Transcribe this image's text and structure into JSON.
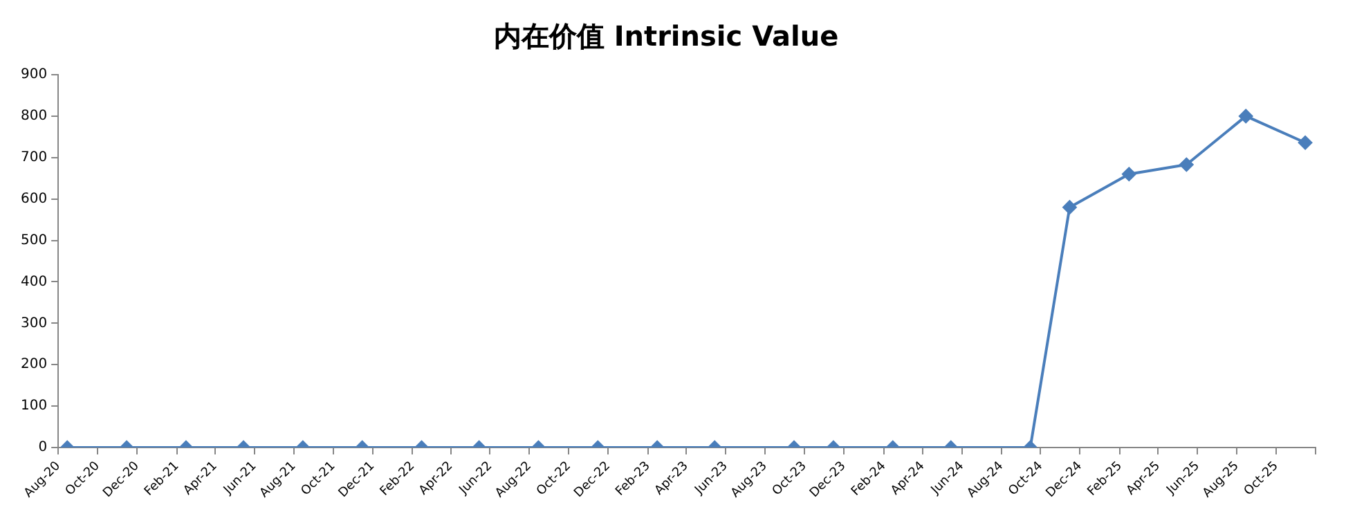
{
  "chart_data": {
    "type": "line",
    "title": "内在价值 Intrinsic Value",
    "x": [
      "2020-08-15",
      "2020-11-15",
      "2021-02-15",
      "2021-05-15",
      "2021-08-15",
      "2021-11-15",
      "2022-02-15",
      "2022-05-15",
      "2022-08-15",
      "2022-11-15",
      "2023-02-15",
      "2023-05-15",
      "2023-09-15",
      "2023-11-15",
      "2024-02-15",
      "2024-05-15",
      "2024-09-15",
      "2024-11-15",
      "2025-02-15",
      "2025-05-15",
      "2025-08-15",
      "2025-11-15"
    ],
    "series": [
      {
        "color": "#4a7ebb",
        "values": [
          0,
          0,
          0,
          0,
          0,
          0,
          0,
          0,
          0,
          0,
          0,
          0,
          0,
          0,
          0,
          0,
          0,
          580,
          660,
          683,
          800,
          736
        ]
      }
    ],
    "xlim": [
      "2020-08-01",
      "2025-12-01"
    ],
    "xticks": [
      {
        "value": "2020-08",
        "label": "Aug-20"
      },
      {
        "value": "2020-10",
        "label": "Oct-20"
      },
      {
        "value": "2020-12",
        "label": "Dec-20"
      },
      {
        "value": "2021-02",
        "label": "Feb-21"
      },
      {
        "value": "2021-04",
        "label": "Apr-21"
      },
      {
        "value": "2021-06",
        "label": "Jun-21"
      },
      {
        "value": "2021-08",
        "label": "Aug-21"
      },
      {
        "value": "2021-10",
        "label": "Oct-21"
      },
      {
        "value": "2021-12",
        "label": "Dec-21"
      },
      {
        "value": "2022-02",
        "label": "Feb-22"
      },
      {
        "value": "2022-04",
        "label": "Apr-22"
      },
      {
        "value": "2022-06",
        "label": "Jun-22"
      },
      {
        "value": "2022-08",
        "label": "Aug-22"
      },
      {
        "value": "2022-10",
        "label": "Oct-22"
      },
      {
        "value": "2022-12",
        "label": "Dec-22"
      },
      {
        "value": "2023-02",
        "label": "Feb-23"
      },
      {
        "value": "2023-04",
        "label": "Apr-23"
      },
      {
        "value": "2023-06",
        "label": "Jun-23"
      },
      {
        "value": "2023-08",
        "label": "Aug-23"
      },
      {
        "value": "2023-10",
        "label": "Oct-23"
      },
      {
        "value": "2023-12",
        "label": "Dec-23"
      },
      {
        "value": "2024-02",
        "label": "Feb-24"
      },
      {
        "value": "2024-04",
        "label": "Apr-24"
      },
      {
        "value": "2024-06",
        "label": "Jun-24"
      },
      {
        "value": "2024-08",
        "label": "Aug-24"
      },
      {
        "value": "2024-10",
        "label": "Oct-24"
      },
      {
        "value": "2024-12",
        "label": "Dec-24"
      },
      {
        "value": "2025-02",
        "label": "Feb-25"
      },
      {
        "value": "2025-04",
        "label": "Apr-25"
      },
      {
        "value": "2025-06",
        "label": "Jun-25"
      },
      {
        "value": "2025-08",
        "label": "Aug-25"
      },
      {
        "value": "2025-10",
        "label": "Oct-25"
      },
      {
        "value": "2025-12",
        "label": null
      }
    ],
    "ylim": [
      0,
      900
    ],
    "yticks": [
      0,
      100,
      200,
      300,
      400,
      500,
      600,
      700,
      800,
      900
    ],
    "grid": false,
    "legend": false,
    "marker": "diamond",
    "line_style": "solid"
  }
}
